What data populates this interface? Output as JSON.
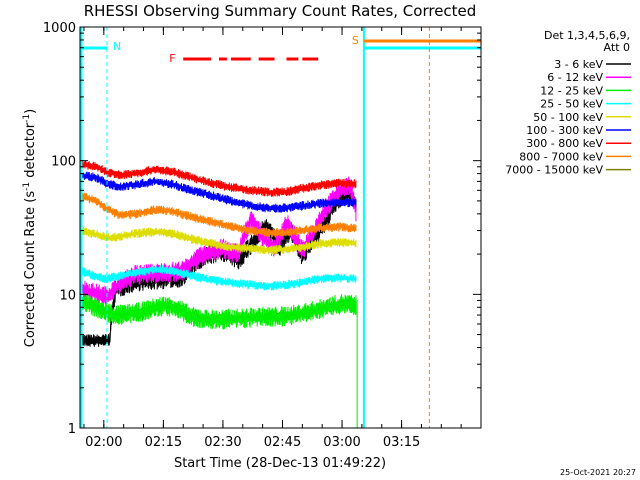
{
  "chart_data": {
    "type": "line",
    "title": "RHESSI Observing Summary Count Rates, Corrected",
    "xlabel": "Start Time (28-Dec-13 01:49:22)",
    "ylabel": "Corrected Count Rate (s",
    "ylabel_sup": "-1",
    "ylabel_mid": " detector",
    "ylabel_sup2": "-1",
    "ylabel_end": ")",
    "y_scale": "log",
    "ylim": [
      1,
      1000
    ],
    "xlim_minutes": [
      -6,
      95
    ],
    "y_ticks": [
      {
        "value": 1,
        "label": "1"
      },
      {
        "value": 10,
        "label": "10"
      },
      {
        "value": 100,
        "label": "100"
      },
      {
        "value": 1000,
        "label": "1000"
      }
    ],
    "x_ticks": [
      {
        "minute": 0,
        "label": "02:00"
      },
      {
        "minute": 15,
        "label": "02:15"
      },
      {
        "minute": 30,
        "label": "02:30"
      },
      {
        "minute": 45,
        "label": "02:45"
      },
      {
        "minute": 60,
        "label": "03:00"
      },
      {
        "minute": 75,
        "label": "03:15"
      }
    ],
    "legend_title": [
      "Det 1,3,4,5,6,9,",
      "Att 0"
    ],
    "legend_placement": "right",
    "series": [
      {
        "name": "3 - 6 keV",
        "color": "#000000",
        "points": [
          [
            -6,
            4.5
          ],
          [
            0,
            4.5
          ],
          [
            1.5,
            4.6
          ],
          [
            3,
            11
          ],
          [
            8,
            12.5
          ],
          [
            15,
            13
          ],
          [
            20,
            13.5
          ],
          [
            23,
            17
          ],
          [
            27,
            20
          ],
          [
            30,
            21
          ],
          [
            34,
            18
          ],
          [
            38,
            25
          ],
          [
            41,
            33
          ],
          [
            44,
            22
          ],
          [
            47,
            30
          ],
          [
            50,
            19
          ],
          [
            53,
            26
          ],
          [
            56,
            35
          ],
          [
            58,
            47
          ],
          [
            60,
            55
          ],
          [
            62,
            56
          ],
          [
            63,
            50
          ],
          [
            63.6,
            45
          ]
        ]
      },
      {
        "name": "6 - 12 keV",
        "color": "#ff00ff",
        "points": [
          [
            -6,
            11
          ],
          [
            0,
            9.7
          ],
          [
            1.5,
            10
          ],
          [
            4,
            12
          ],
          [
            8,
            14
          ],
          [
            15,
            14.5
          ],
          [
            20,
            15
          ],
          [
            23,
            18
          ],
          [
            27,
            21
          ],
          [
            30,
            22
          ],
          [
            34,
            20
          ],
          [
            37,
            36
          ],
          [
            40,
            27
          ],
          [
            43,
            22
          ],
          [
            46,
            34
          ],
          [
            50,
            21
          ],
          [
            53,
            30
          ],
          [
            57,
            48
          ],
          [
            60,
            62
          ],
          [
            62,
            65
          ],
          [
            63,
            50
          ],
          [
            63.6,
            40
          ]
        ]
      },
      {
        "name": "12 - 25 keV",
        "color": "#00ee00",
        "points": [
          [
            -6,
            9
          ],
          [
            0,
            7.5
          ],
          [
            3,
            7
          ],
          [
            8,
            7.2
          ],
          [
            15,
            8.2
          ],
          [
            18,
            8
          ],
          [
            22,
            6.8
          ],
          [
            26,
            6.5
          ],
          [
            30,
            6.5
          ],
          [
            35,
            6.6
          ],
          [
            40,
            6.8
          ],
          [
            44,
            6.8
          ],
          [
            48,
            7
          ],
          [
            52,
            7.4
          ],
          [
            56,
            8
          ],
          [
            60,
            8.5
          ],
          [
            63.6,
            8.3
          ]
        ]
      },
      {
        "name": "25 - 50 keV",
        "color": "#00ffff",
        "points": [
          [
            -6,
            15
          ],
          [
            0,
            13
          ],
          [
            3,
            13.5
          ],
          [
            8,
            14.5
          ],
          [
            13,
            15.5
          ],
          [
            17,
            15
          ],
          [
            22,
            13.8
          ],
          [
            27,
            12.8
          ],
          [
            32,
            12.2
          ],
          [
            37,
            11.8
          ],
          [
            42,
            11.5
          ],
          [
            46,
            11.8
          ],
          [
            50,
            12.3
          ],
          [
            54,
            13
          ],
          [
            58,
            13.3
          ],
          [
            63.6,
            13
          ]
        ]
      },
      {
        "name": "50 - 100 keV",
        "color": "#dddd00",
        "points": [
          [
            -6,
            30
          ],
          [
            -2,
            28
          ],
          [
            1,
            26.5
          ],
          [
            4,
            27
          ],
          [
            8,
            28.5
          ],
          [
            13,
            29.5
          ],
          [
            17,
            28.5
          ],
          [
            22,
            26
          ],
          [
            27,
            24
          ],
          [
            32,
            22.5
          ],
          [
            37,
            22
          ],
          [
            42,
            21.5
          ],
          [
            46,
            21.8
          ],
          [
            50,
            22.5
          ],
          [
            55,
            24
          ],
          [
            60,
            24.5
          ],
          [
            63.6,
            24
          ]
        ]
      },
      {
        "name": "100 - 300 keV",
        "color": "#0000ff",
        "points": [
          [
            -6,
            78
          ],
          [
            -2,
            75
          ],
          [
            1,
            67
          ],
          [
            4,
            64
          ],
          [
            8,
            66
          ],
          [
            13,
            70
          ],
          [
            17,
            67
          ],
          [
            22,
            60
          ],
          [
            27,
            55
          ],
          [
            32,
            50
          ],
          [
            37,
            46
          ],
          [
            42,
            44
          ],
          [
            46,
            44.5
          ],
          [
            50,
            46
          ],
          [
            55,
            48
          ],
          [
            60,
            49
          ],
          [
            63.6,
            48
          ]
        ]
      },
      {
        "name": "300 - 800 keV",
        "color": "#ff0000",
        "points": [
          [
            -6,
            95
          ],
          [
            -2,
            90
          ],
          [
            1,
            82
          ],
          [
            4,
            78
          ],
          [
            8,
            80
          ],
          [
            13,
            86
          ],
          [
            17,
            83
          ],
          [
            22,
            75
          ],
          [
            27,
            68
          ],
          [
            32,
            63
          ],
          [
            37,
            60
          ],
          [
            42,
            58
          ],
          [
            46,
            58.5
          ],
          [
            50,
            62
          ],
          [
            55,
            66
          ],
          [
            60,
            68
          ],
          [
            63.6,
            67
          ]
        ]
      },
      {
        "name": "800 - 7000 keV",
        "color": "#ff8000",
        "points": [
          [
            -6,
            55
          ],
          [
            -2,
            50
          ],
          [
            1,
            43
          ],
          [
            4,
            39
          ],
          [
            8,
            40
          ],
          [
            13,
            43
          ],
          [
            17,
            42
          ],
          [
            22,
            38
          ],
          [
            27,
            35
          ],
          [
            32,
            32
          ],
          [
            37,
            30
          ],
          [
            42,
            29
          ],
          [
            46,
            29
          ],
          [
            50,
            30
          ],
          [
            55,
            31.5
          ],
          [
            60,
            32
          ],
          [
            63.6,
            31
          ]
        ]
      },
      {
        "name": "7000 - 15000 keV",
        "color": "#808000",
        "points": []
      }
    ],
    "annotations": {
      "night_label": "N",
      "saa_label": "S",
      "flare_label": "F",
      "timestamp": "25-Oct-2021 20:27"
    },
    "grid": false
  }
}
